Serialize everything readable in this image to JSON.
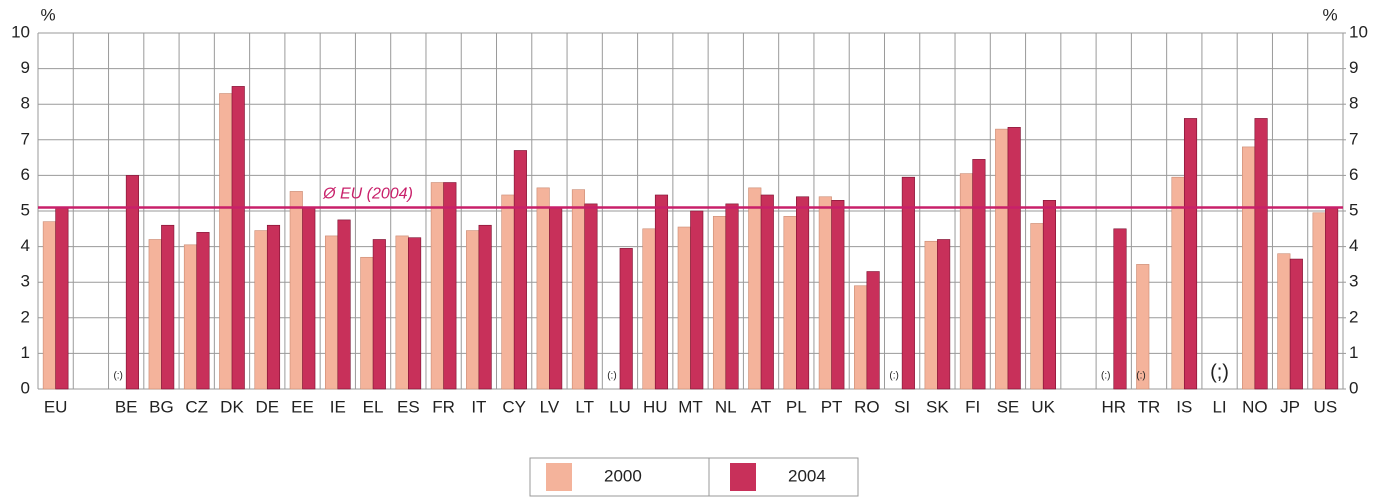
{
  "chart_data": {
    "type": "bar",
    "y_label": "%",
    "y2_label": "%",
    "categories": [
      "EU",
      null,
      "BE",
      "BG",
      "CZ",
      "DK",
      "DE",
      "EE",
      "IE",
      "EL",
      "ES",
      "FR",
      "IT",
      "CY",
      "LV",
      "LT",
      "LU",
      "HU",
      "MT",
      "NL",
      "AT",
      "PL",
      "PT",
      "RO",
      "SI",
      "SK",
      "FI",
      "SE",
      "UK",
      null,
      "HR",
      "TR",
      "IS",
      "LI",
      "NO",
      "JP",
      "US"
    ],
    "series": [
      {
        "name": "2000",
        "color": "#f4b39b",
        "values": [
          4.7,
          null,
          null,
          4.2,
          4.05,
          8.3,
          4.45,
          5.55,
          4.3,
          3.7,
          4.3,
          5.8,
          4.45,
          5.45,
          5.65,
          5.6,
          null,
          4.5,
          4.55,
          4.85,
          5.65,
          4.85,
          5.4,
          2.9,
          null,
          4.15,
          6.05,
          7.3,
          4.65,
          null,
          null,
          3.5,
          5.95,
          null,
          6.8,
          3.8,
          4.95
        ]
      },
      {
        "name": "2004",
        "color": "#c8305a",
        "values": [
          5.1,
          null,
          6.0,
          4.6,
          4.4,
          8.5,
          4.6,
          5.1,
          4.75,
          4.2,
          4.25,
          5.8,
          4.6,
          6.7,
          5.1,
          5.2,
          3.95,
          5.45,
          5.0,
          5.2,
          5.45,
          5.4,
          5.3,
          3.3,
          5.95,
          4.2,
          6.45,
          7.35,
          5.3,
          null,
          4.5,
          null,
          7.6,
          null,
          7.6,
          3.65,
          5.1
        ]
      }
    ],
    "missing_labels": [
      {
        "category": "BE",
        "label": "(:)"
      },
      {
        "category": "LU",
        "label": "(:)"
      },
      {
        "category": "SI",
        "label": "(:)"
      },
      {
        "category": "HR",
        "label": "(:)"
      },
      {
        "category": "TR",
        "label": "(:)"
      },
      {
        "category": "LI",
        "label": "(;)"
      }
    ],
    "reference_line": {
      "value": 5.1,
      "label": "Ø EU (2004)",
      "color": "#c8206a"
    },
    "ylim": [
      0,
      10
    ],
    "yticks": [
      0,
      1,
      2,
      3,
      4,
      5,
      6,
      7,
      8,
      9,
      10
    ],
    "y2lim": [
      0,
      10
    ],
    "y2ticks": [
      0,
      1,
      2,
      3,
      4,
      5,
      6,
      7,
      8,
      9,
      10
    ],
    "grid": true,
    "legend": "bottom"
  }
}
